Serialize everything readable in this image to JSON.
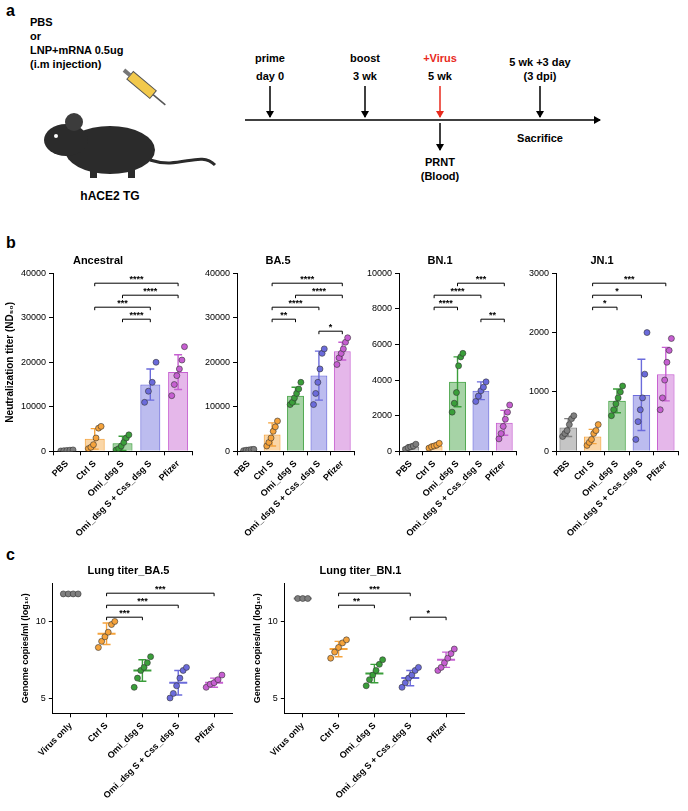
{
  "panel_labels": [
    "a",
    "b",
    "c"
  ],
  "diagram": {
    "injection": [
      "PBS",
      "or",
      "LNP+mRNA 0.5ug",
      "(i.m injection)"
    ],
    "mouse": "hACE2 TG",
    "timeline": {
      "steps": [
        {
          "event": "prime",
          "time": "day 0",
          "color": "#000000"
        },
        {
          "event": "boost",
          "time": "3 wk",
          "color": "#000000"
        },
        {
          "event": "+Virus",
          "time": "5 wk",
          "color": "#e8291c"
        }
      ],
      "readout": [
        "PRNT",
        "(Blood)"
      ],
      "end": {
        "time": "5 wk +3 day",
        "note": "(3 dpi)",
        "event": "Sacrifice"
      }
    }
  },
  "chart_data": [
    {
      "type": "bar",
      "title": "Ancestral",
      "y_label": "Neutralization titer (ND₅₀)",
      "categories": [
        "PBS",
        "Ctrl S",
        "Omi_dsg S",
        "Omi_dsg S + Css_dsg S",
        "Pfizer"
      ],
      "values": [
        200,
        2800,
        1800,
        15000,
        17800
      ],
      "errors": [
        120,
        2300,
        1600,
        3500,
        3900
      ],
      "points": [
        [
          80,
          150,
          200,
          250,
          320
        ],
        [
          600,
          900,
          1500,
          3000,
          5200,
          5600
        ],
        [
          300,
          600,
          1200,
          2000,
          3000,
          3700
        ],
        [
          11000,
          13500,
          15500,
          20000
        ],
        [
          12500,
          15000,
          17000,
          18500,
          20500,
          23500
        ]
      ],
      "colors": [
        "#7f7f7f",
        "#f5a33c",
        "#3a9e3a",
        "#6b6bdb",
        "#c65fd1"
      ],
      "ylim": [
        0,
        40000
      ],
      "yticks": [
        0,
        10000,
        20000,
        30000,
        40000
      ],
      "grid": false,
      "significance": [
        {
          "from": "Ctrl S",
          "to": "Pfizer",
          "label": "****"
        },
        {
          "from": "Omi_dsg S",
          "to": "Pfizer",
          "label": "****"
        },
        {
          "from": "Ctrl S",
          "to": "Omi_dsg S + Css_dsg S",
          "label": "***"
        },
        {
          "from": "Omi_dsg S",
          "to": "Omi_dsg S + Css_dsg S",
          "label": "****"
        }
      ]
    },
    {
      "type": "bar",
      "title": "BA.5",
      "categories": [
        "PBS",
        "Ctrl S",
        "Omi_dsg S",
        "Omi_dsg S + Css_dsg S",
        "Pfizer"
      ],
      "values": [
        300,
        3800,
        12500,
        17000,
        22500
      ],
      "errors": [
        150,
        2600,
        1900,
        5500,
        2000
      ],
      "points": [
        [
          150,
          250,
          300,
          400,
          450
        ],
        [
          1200,
          2000,
          3000,
          4500,
          5500,
          6800
        ],
        [
          10500,
          11000,
          12000,
          13000,
          14000,
          15500
        ],
        [
          10500,
          13000,
          15500,
          18500,
          22000,
          23000
        ],
        [
          19500,
          21000,
          22000,
          23000,
          24500,
          25500
        ]
      ],
      "colors": [
        "#7f7f7f",
        "#f5a33c",
        "#3a9e3a",
        "#6b6bdb",
        "#c65fd1"
      ],
      "ylim": [
        0,
        40000
      ],
      "yticks": [
        0,
        10000,
        20000,
        30000,
        40000
      ],
      "grid": false,
      "significance": [
        {
          "from": "Ctrl S",
          "to": "Pfizer",
          "label": "****"
        },
        {
          "from": "Omi_dsg S",
          "to": "Pfizer",
          "label": "****"
        },
        {
          "from": "Ctrl S",
          "to": "Omi_dsg S + Css_dsg S",
          "label": "****"
        },
        {
          "from": "Ctrl S",
          "to": "Omi_dsg S",
          "label": "**"
        },
        {
          "from": "Omi_dsg S + Css_dsg S",
          "to": "Pfizer",
          "label": "*"
        }
      ]
    },
    {
      "type": "bar",
      "title": "BN.1",
      "categories": [
        "PBS",
        "Ctrl S",
        "Omi_dsg S",
        "Omi_dsg S + Css_dsg S",
        "Pfizer"
      ],
      "values": [
        250,
        300,
        3900,
        3400,
        1600
      ],
      "errors": [
        120,
        100,
        1400,
        500,
        700
      ],
      "points": [
        [
          120,
          200,
          250,
          300,
          400
        ],
        [
          180,
          250,
          300,
          350,
          450
        ],
        [
          2200,
          2700,
          3300,
          4800,
          5300,
          5500
        ],
        [
          2800,
          3100,
          3400,
          3600,
          3900
        ],
        [
          700,
          1000,
          1400,
          1800,
          2200,
          2600
        ]
      ],
      "colors": [
        "#7f7f7f",
        "#f5a33c",
        "#3a9e3a",
        "#6b6bdb",
        "#c65fd1"
      ],
      "ylim": [
        0,
        10000
      ],
      "yticks": [
        0,
        2000,
        4000,
        6000,
        8000,
        10000
      ],
      "grid": false,
      "significance": [
        {
          "from": "Omi_dsg S",
          "to": "Pfizer",
          "label": "***"
        },
        {
          "from": "Ctrl S",
          "to": "Omi_dsg S + Css_dsg S",
          "label": "****"
        },
        {
          "from": "Ctrl S",
          "to": "Omi_dsg S",
          "label": "****"
        },
        {
          "from": "Omi_dsg S + Css_dsg S",
          "to": "Pfizer",
          "label": "**"
        }
      ]
    },
    {
      "type": "bar",
      "title": "JN.1",
      "categories": [
        "PBS",
        "Ctrl S",
        "Omi_dsg S",
        "Omi_dsg S + Css_dsg S",
        "Pfizer"
      ],
      "values": [
        400,
        250,
        850,
        950,
        1300
      ],
      "errors": [
        150,
        120,
        200,
        600,
        450
      ],
      "points": [
        [
          250,
          300,
          350,
          450,
          550,
          600
        ],
        [
          100,
          150,
          200,
          300,
          350,
          450
        ],
        [
          600,
          700,
          800,
          900,
          1000,
          1100
        ],
        [
          200,
          500,
          700,
          900,
          1300,
          2000
        ],
        [
          700,
          900,
          1200,
          1500,
          1700,
          1900
        ]
      ],
      "colors": [
        "#7f7f7f",
        "#f5a33c",
        "#3a9e3a",
        "#6b6bdb",
        "#c65fd1"
      ],
      "ylim": [
        0,
        3000
      ],
      "yticks": [
        0,
        1000,
        2000,
        3000
      ],
      "grid": false,
      "significance": [
        {
          "from": "Ctrl S",
          "to": "Pfizer",
          "label": "***"
        },
        {
          "from": "Ctrl S",
          "to": "Omi_dsg S + Css_dsg S",
          "label": "*"
        },
        {
          "from": "Ctrl S",
          "to": "Omi_dsg S",
          "label": "*"
        }
      ]
    },
    {
      "type": "scatter",
      "title": "Lung titer_BA.5",
      "y_label": "Genome copies/ml (log₁₀)",
      "categories": [
        "Virus only",
        "Ctrl S",
        "Omi_dsg S",
        "Omi_dsg S + Css_dsg S",
        "Pfizer"
      ],
      "values": [
        11.8,
        9.2,
        6.8,
        6.0,
        6.0
      ],
      "errors": [
        0,
        0.7,
        0.7,
        0.8,
        0.3
      ],
      "points": [
        [
          11.8,
          11.8,
          11.8,
          11.8
        ],
        [
          8.3,
          8.7,
          9.0,
          9.3,
          9.8,
          10.0
        ],
        [
          5.7,
          6.3,
          6.8,
          7.0,
          7.3,
          7.7
        ],
        [
          5.0,
          5.3,
          5.8,
          6.3,
          6.8,
          7.0
        ],
        [
          5.7,
          5.9,
          6.0,
          6.2,
          6.5
        ]
      ],
      "colors": [
        "#7f7f7f",
        "#f5a33c",
        "#3a9e3a",
        "#6b6bdb",
        "#c65fd1"
      ],
      "ylim": [
        4,
        12.5
      ],
      "yticks": [
        5,
        10
      ],
      "grid": false,
      "significance": [
        {
          "from": "Ctrl S",
          "to": "Pfizer",
          "label": "***"
        },
        {
          "from": "Ctrl S",
          "to": "Omi_dsg S + Css_dsg S",
          "label": "***"
        },
        {
          "from": "Ctrl S",
          "to": "Omi_dsg S",
          "label": "***"
        }
      ]
    },
    {
      "type": "scatter",
      "title": "Lung titer_BN.1",
      "y_label": "Genome copies/ml (log₁₀)",
      "categories": [
        "Virus only",
        "Ctrl S",
        "Omi_dsg S",
        "Omi_dsg S + Css_dsg S",
        "Pfizer"
      ],
      "values": [
        11.5,
        8.2,
        6.6,
        6.3,
        7.5
      ],
      "errors": [
        0,
        0.5,
        0.6,
        0.5,
        0.5
      ],
      "points": [
        [
          11.5,
          11.5,
          11.5
        ],
        [
          7.6,
          8.0,
          8.3,
          8.6,
          8.8
        ],
        [
          5.8,
          6.2,
          6.5,
          6.8,
          7.2,
          7.5
        ],
        [
          5.7,
          6.0,
          6.3,
          6.5,
          6.8,
          7.0
        ],
        [
          6.8,
          7.0,
          7.3,
          7.6,
          7.9,
          8.2
        ]
      ],
      "colors": [
        "#7f7f7f",
        "#f5a33c",
        "#3a9e3a",
        "#6b6bdb",
        "#c65fd1"
      ],
      "ylim": [
        4,
        12.5
      ],
      "yticks": [
        5,
        10
      ],
      "grid": false,
      "significance": [
        {
          "from": "Ctrl S",
          "to": "Omi_dsg S + Css_dsg S",
          "label": "***"
        },
        {
          "from": "Ctrl S",
          "to": "Omi_dsg S",
          "label": "**"
        },
        {
          "from": "Omi_dsg S + Css_dsg S",
          "to": "Pfizer",
          "label": "*"
        }
      ]
    }
  ]
}
